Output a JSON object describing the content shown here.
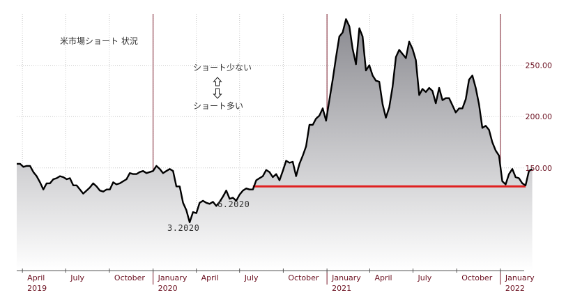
{
  "chart_data": {
    "type": "area",
    "title": "",
    "xlabel": "",
    "ylabel": "",
    "xlim": [
      "2019-03-20",
      "2022-02-20"
    ],
    "ylim": [
      50,
      300
    ],
    "y_tick_values": [
      150,
      200,
      250
    ],
    "y_tick_labels": [
      "150.00",
      "200.00",
      "250.00"
    ],
    "x_ticks": [
      {
        "date": "2019-04-01",
        "label": "April",
        "year": "2019"
      },
      {
        "date": "2019-07-01",
        "label": "July",
        "year": ""
      },
      {
        "date": "2019-10-01",
        "label": "October",
        "year": ""
      },
      {
        "date": "2020-01-01",
        "label": "January",
        "year": "2020"
      },
      {
        "date": "2020-04-01",
        "label": "April",
        "year": ""
      },
      {
        "date": "2020-07-01",
        "label": "July",
        "year": ""
      },
      {
        "date": "2020-10-01",
        "label": "October",
        "year": ""
      },
      {
        "date": "2021-01-01",
        "label": "January",
        "year": "2021"
      },
      {
        "date": "2021-04-01",
        "label": "April",
        "year": ""
      },
      {
        "date": "2021-07-01",
        "label": "July",
        "year": ""
      },
      {
        "date": "2021-10-01",
        "label": "October",
        "year": ""
      },
      {
        "date": "2022-01-01",
        "label": "January",
        "year": "2022"
      }
    ],
    "year_lines": [
      "2020-01-01",
      "2021-01-01",
      "2022-01-01"
    ],
    "grid": true,
    "series": [
      {
        "color": "#000000",
        "points": [
          [
            "2019-03-20",
            154
          ],
          [
            "2019-03-27",
            154
          ],
          [
            "2019-04-03",
            151
          ],
          [
            "2019-04-10",
            152
          ],
          [
            "2019-04-17",
            152
          ],
          [
            "2019-04-24",
            146
          ],
          [
            "2019-05-01",
            142
          ],
          [
            "2019-05-08",
            136
          ],
          [
            "2019-05-15",
            129
          ],
          [
            "2019-05-22",
            135
          ],
          [
            "2019-05-29",
            135
          ],
          [
            "2019-06-05",
            139
          ],
          [
            "2019-06-12",
            140
          ],
          [
            "2019-06-19",
            142
          ],
          [
            "2019-06-26",
            141
          ],
          [
            "2019-07-03",
            139
          ],
          [
            "2019-07-10",
            140
          ],
          [
            "2019-07-17",
            133
          ],
          [
            "2019-07-24",
            133
          ],
          [
            "2019-07-31",
            129
          ],
          [
            "2019-08-07",
            125
          ],
          [
            "2019-08-14",
            128
          ],
          [
            "2019-08-21",
            131
          ],
          [
            "2019-08-28",
            135
          ],
          [
            "2019-09-04",
            132
          ],
          [
            "2019-09-11",
            128
          ],
          [
            "2019-09-18",
            127
          ],
          [
            "2019-09-25",
            129
          ],
          [
            "2019-10-02",
            129
          ],
          [
            "2019-10-09",
            136
          ],
          [
            "2019-10-16",
            134
          ],
          [
            "2019-10-23",
            135
          ],
          [
            "2019-10-30",
            137
          ],
          [
            "2019-11-06",
            139
          ],
          [
            "2019-11-13",
            145
          ],
          [
            "2019-11-20",
            144
          ],
          [
            "2019-11-27",
            144
          ],
          [
            "2019-12-04",
            146
          ],
          [
            "2019-12-11",
            147
          ],
          [
            "2019-12-18",
            145
          ],
          [
            "2019-12-25",
            146
          ],
          [
            "2020-01-01",
            147
          ],
          [
            "2020-01-08",
            152
          ],
          [
            "2020-01-15",
            149
          ],
          [
            "2020-01-22",
            145
          ],
          [
            "2020-01-29",
            147
          ],
          [
            "2020-02-05",
            149
          ],
          [
            "2020-02-12",
            147
          ],
          [
            "2020-02-19",
            132
          ],
          [
            "2020-02-26",
            132
          ],
          [
            "2020-03-04",
            116
          ],
          [
            "2020-03-11",
            109
          ],
          [
            "2020-03-18",
            97
          ],
          [
            "2020-03-25",
            107
          ],
          [
            "2020-04-01",
            106
          ],
          [
            "2020-04-08",
            116
          ],
          [
            "2020-04-15",
            118
          ],
          [
            "2020-04-22",
            116
          ],
          [
            "2020-04-29",
            115
          ],
          [
            "2020-05-06",
            117
          ],
          [
            "2020-05-13",
            113
          ],
          [
            "2020-05-20",
            117
          ],
          [
            "2020-05-27",
            122
          ],
          [
            "2020-06-03",
            128
          ],
          [
            "2020-06-10",
            120
          ],
          [
            "2020-06-17",
            121
          ],
          [
            "2020-06-24",
            118
          ],
          [
            "2020-07-01",
            124
          ],
          [
            "2020-07-08",
            128
          ],
          [
            "2020-07-15",
            130
          ],
          [
            "2020-07-22",
            129
          ],
          [
            "2020-07-29",
            129
          ],
          [
            "2020-08-05",
            138
          ],
          [
            "2020-08-12",
            140
          ],
          [
            "2020-08-19",
            142
          ],
          [
            "2020-08-26",
            148
          ],
          [
            "2020-09-02",
            146
          ],
          [
            "2020-09-09",
            141
          ],
          [
            "2020-09-16",
            144
          ],
          [
            "2020-09-23",
            138
          ],
          [
            "2020-09-30",
            147
          ],
          [
            "2020-10-07",
            157
          ],
          [
            "2020-10-14",
            155
          ],
          [
            "2020-10-21",
            156
          ],
          [
            "2020-10-28",
            142
          ],
          [
            "2020-11-04",
            154
          ],
          [
            "2020-11-11",
            162
          ],
          [
            "2020-11-18",
            171
          ],
          [
            "2020-11-25",
            192
          ],
          [
            "2020-12-02",
            192
          ],
          [
            "2020-12-09",
            198
          ],
          [
            "2020-12-16",
            201
          ],
          [
            "2020-12-23",
            208
          ],
          [
            "2020-12-30",
            196
          ],
          [
            "2021-01-06",
            216
          ],
          [
            "2021-01-13",
            236
          ],
          [
            "2021-01-20",
            258
          ],
          [
            "2021-01-27",
            278
          ],
          [
            "2021-02-03",
            282
          ],
          [
            "2021-02-10",
            295
          ],
          [
            "2021-02-17",
            288
          ],
          [
            "2021-02-24",
            266
          ],
          [
            "2021-03-03",
            251
          ],
          [
            "2021-03-10",
            286
          ],
          [
            "2021-03-17",
            278
          ],
          [
            "2021-03-24",
            245
          ],
          [
            "2021-03-31",
            250
          ],
          [
            "2021-04-07",
            240
          ],
          [
            "2021-04-14",
            235
          ],
          [
            "2021-04-21",
            234
          ],
          [
            "2021-04-28",
            212
          ],
          [
            "2021-05-05",
            199
          ],
          [
            "2021-05-12",
            209
          ],
          [
            "2021-05-19",
            229
          ],
          [
            "2021-05-26",
            258
          ],
          [
            "2021-06-02",
            265
          ],
          [
            "2021-06-09",
            261
          ],
          [
            "2021-06-16",
            257
          ],
          [
            "2021-06-23",
            273
          ],
          [
            "2021-06-30",
            266
          ],
          [
            "2021-07-07",
            255
          ],
          [
            "2021-07-14",
            221
          ],
          [
            "2021-07-21",
            227
          ],
          [
            "2021-07-28",
            224
          ],
          [
            "2021-08-04",
            228
          ],
          [
            "2021-08-11",
            225
          ],
          [
            "2021-08-18",
            213
          ],
          [
            "2021-08-25",
            228
          ],
          [
            "2021-09-01",
            216
          ],
          [
            "2021-09-08",
            218
          ],
          [
            "2021-09-15",
            218
          ],
          [
            "2021-09-22",
            211
          ],
          [
            "2021-09-29",
            204
          ],
          [
            "2021-10-06",
            208
          ],
          [
            "2021-10-13",
            208
          ],
          [
            "2021-10-20",
            217
          ],
          [
            "2021-10-27",
            236
          ],
          [
            "2021-11-03",
            240
          ],
          [
            "2021-11-10",
            228
          ],
          [
            "2021-11-17",
            212
          ],
          [
            "2021-11-24",
            189
          ],
          [
            "2021-12-01",
            191
          ],
          [
            "2021-12-08",
            187
          ],
          [
            "2021-12-15",
            175
          ],
          [
            "2021-12-22",
            167
          ],
          [
            "2021-12-29",
            162
          ],
          [
            "2022-01-05",
            137
          ],
          [
            "2022-01-12",
            134
          ],
          [
            "2022-01-19",
            144
          ],
          [
            "2022-01-26",
            149
          ],
          [
            "2022-02-02",
            141
          ],
          [
            "2022-02-09",
            140
          ],
          [
            "2022-02-16",
            135
          ],
          [
            "2022-02-23",
            133
          ],
          [
            "2022-03-02",
            147
          ],
          [
            "2022-03-09",
            149
          ]
        ]
      }
    ],
    "reference_line": {
      "value": 132,
      "from": "2020-07-29",
      "to": "2022-02-23",
      "color": "#e02020"
    },
    "fill_gradient": {
      "top": "#8a8a90",
      "bottom": "#ffffff"
    },
    "annotations": {
      "title_text": "米市場ショート 状況",
      "few_short": "ショート少ない",
      "many_short": "ショート多い",
      "march_2020": "3.2020",
      "june_2020": "6.2020"
    }
  }
}
